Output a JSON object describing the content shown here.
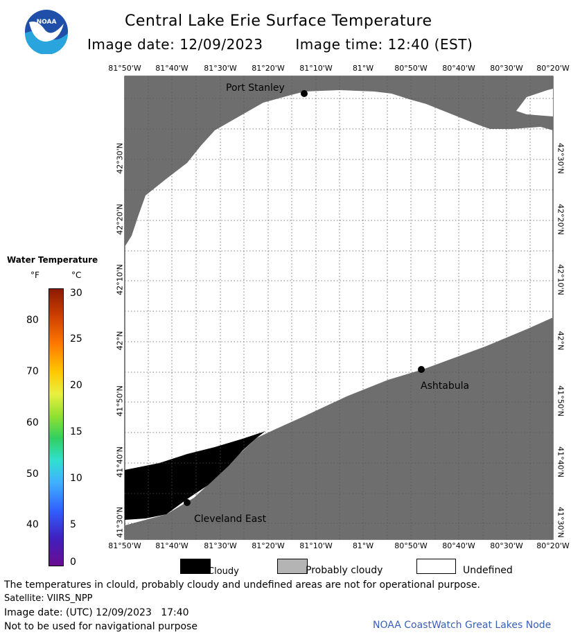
{
  "header": {
    "title": "Central Lake Erie Surface Temperature",
    "date_label": "Image date: 12/09/2023",
    "time_label": "Image time: 12:40 (EST)"
  },
  "logo": {
    "text": "NOAA",
    "icon": "noaa-logo-icon",
    "colors": {
      "blue": "#1f4fa8",
      "light": "#2aa4dc",
      "white": "#ffffff"
    }
  },
  "map": {
    "lon_ticks": [
      "81°50'W",
      "81°40'W",
      "81°30'W",
      "81°20'W",
      "81°10'W",
      "81°W",
      "80°50'W",
      "80°40'W",
      "80°30'W",
      "80°20'W"
    ],
    "lat_ticks": [
      "42°30'N",
      "42°20'N",
      "42°10'N",
      "42°N",
      "41°50'N",
      "41°40'N",
      "41°30'N"
    ],
    "places": [
      {
        "name": "Port Stanley"
      },
      {
        "name": "Ashtabula"
      },
      {
        "name": "Cleveland East"
      }
    ],
    "colors": {
      "land": "#6e6e6e",
      "cloud": "#000000",
      "undefined": "#ffffff",
      "grid": "#555555"
    }
  },
  "legend": {
    "title": "Water Temperature",
    "unit_f": "°F",
    "unit_c": "°C",
    "f_ticks": [
      "80",
      "70",
      "60",
      "50",
      "40"
    ],
    "c_ticks": [
      "30",
      "25",
      "20",
      "15",
      "10",
      "5",
      "0"
    ]
  },
  "key": {
    "cloudy": "Cloudy",
    "probably_cloudy": "Probably cloudy",
    "undefined": "Undefined",
    "colors": {
      "cloudy": "#000000",
      "probably_cloudy": "#b4b4b4",
      "undefined": "#ffffff"
    }
  },
  "footer": {
    "disclaimer": "The temperatures in clould, probably cloudy and undefined areas are not for operational purpose.",
    "satellite": "Satellite: VIIRS_NPP",
    "utc_date": "Image date: (UTC) 12/09/2023   17:40",
    "nav_warning": "Not to be used for navigational purpose",
    "credit": "NOAA CoastWatch Great Lakes Node"
  }
}
